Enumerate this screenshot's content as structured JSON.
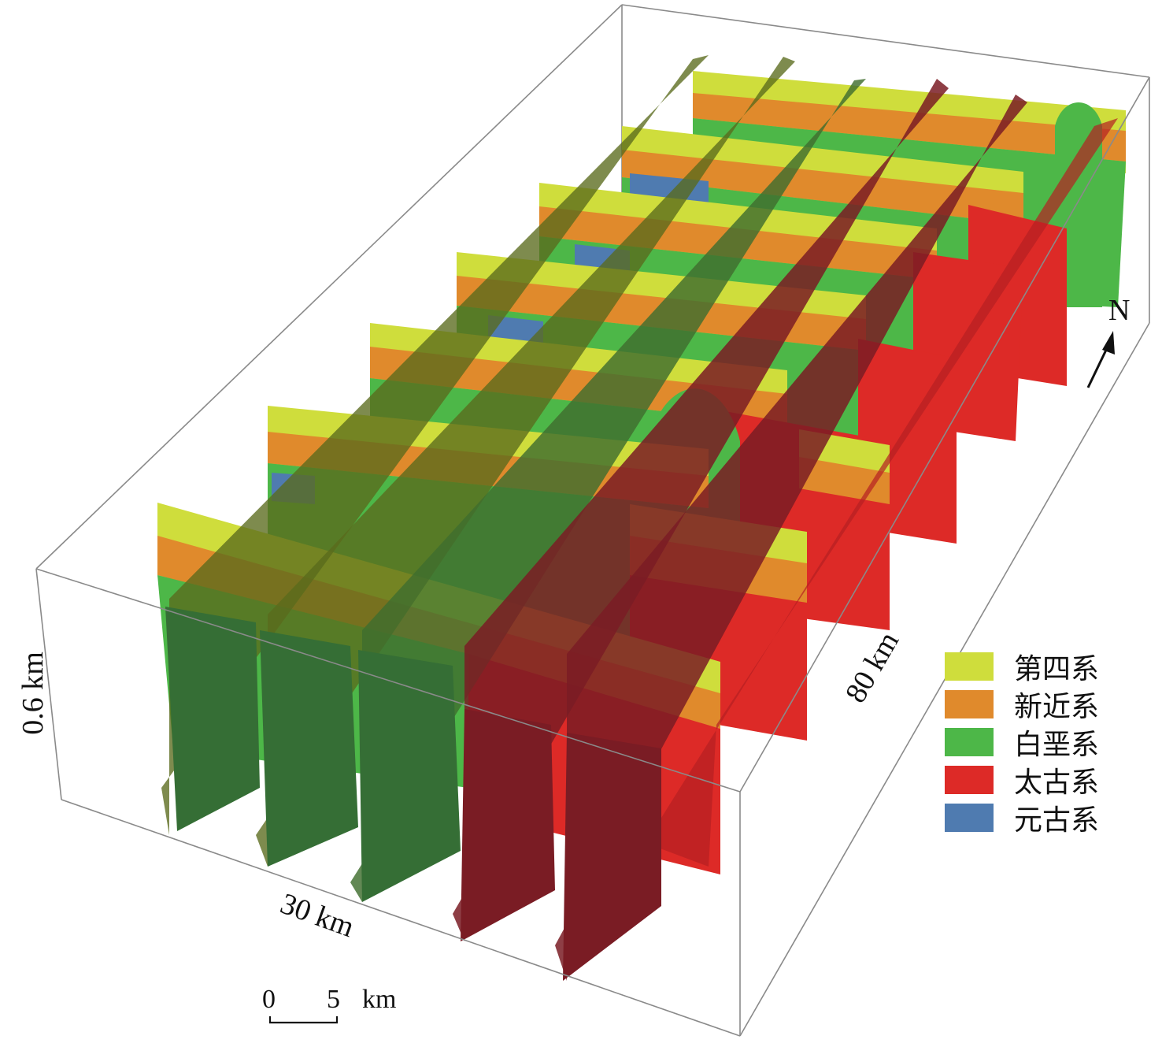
{
  "labels": {
    "depth": "0.6 km",
    "width": "30 km",
    "length": "80 km",
    "north": "N",
    "scale_start": "0",
    "scale_end": "5",
    "scale_unit": "km"
  },
  "legend": [
    {
      "label": "第四系",
      "color": "#cfdd3c"
    },
    {
      "label": "新近系",
      "color": "#e08a2c"
    },
    {
      "label": "白垩系",
      "color": "#4db748"
    },
    {
      "label": "太古系",
      "color": "#dd2a27"
    },
    {
      "label": "元古系",
      "color": "#4f7bb0"
    }
  ]
}
